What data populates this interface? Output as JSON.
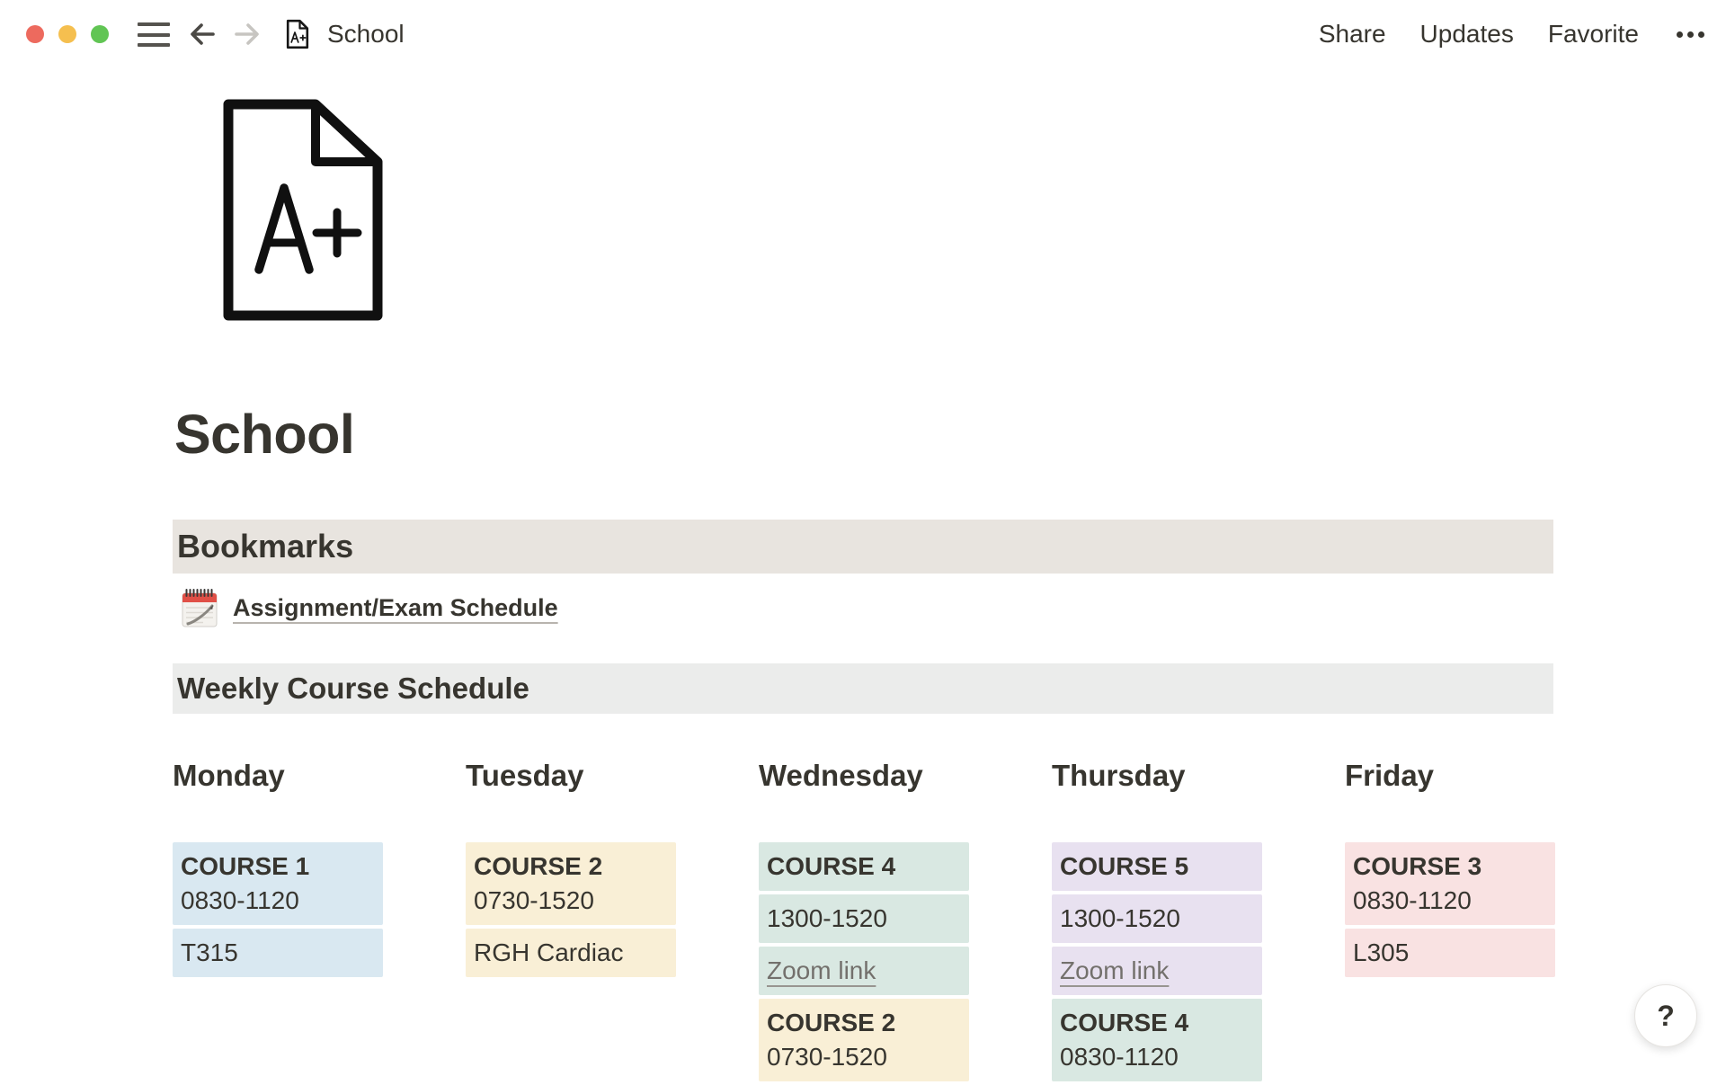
{
  "topbar": {
    "title": "School",
    "share": "Share",
    "updates": "Updates",
    "favorite": "Favorite"
  },
  "page": {
    "icon_text": "A+",
    "title": "School"
  },
  "bookmarks": {
    "header": "Bookmarks",
    "link": "Assignment/Exam Schedule",
    "link_icon": "spiral-notepad-emoji"
  },
  "schedule": {
    "header": "Weekly Course Schedule",
    "days": [
      {
        "name": "Monday",
        "blocks": [
          {
            "color": "blue",
            "lines": [
              {
                "text": "COURSE 1",
                "bold": true
              },
              {
                "text": "0830-1120"
              }
            ]
          },
          {
            "color": "blue",
            "lines": [
              {
                "text": "T315"
              }
            ]
          }
        ]
      },
      {
        "name": "Tuesday",
        "blocks": [
          {
            "color": "yellow",
            "lines": [
              {
                "text": "COURSE 2",
                "bold": true
              },
              {
                "text": "0730-1520"
              }
            ]
          },
          {
            "color": "yellow",
            "lines": [
              {
                "text": "RGH Cardiac"
              }
            ]
          }
        ]
      },
      {
        "name": "Wednesday",
        "blocks": [
          {
            "color": "green",
            "lines": [
              {
                "text": "COURSE 4",
                "bold": true
              }
            ]
          },
          {
            "color": "green",
            "lines": [
              {
                "text": "1300-1520"
              }
            ]
          },
          {
            "color": "green",
            "lines": [
              {
                "text": "Zoom link",
                "link": true
              }
            ]
          },
          {
            "color": "yellow",
            "lines": [
              {
                "text": "COURSE 2",
                "bold": true
              },
              {
                "text": "0730-1520"
              }
            ]
          }
        ]
      },
      {
        "name": "Thursday",
        "blocks": [
          {
            "color": "purple",
            "lines": [
              {
                "text": "COURSE 5",
                "bold": true
              }
            ]
          },
          {
            "color": "purple",
            "lines": [
              {
                "text": "1300-1520"
              }
            ]
          },
          {
            "color": "purple",
            "lines": [
              {
                "text": "Zoom link",
                "link": true
              }
            ]
          },
          {
            "color": "green",
            "lines": [
              {
                "text": "COURSE 4",
                "bold": true
              },
              {
                "text": "0830-1120"
              }
            ]
          }
        ]
      },
      {
        "name": "Friday",
        "blocks": [
          {
            "color": "pink",
            "lines": [
              {
                "text": "COURSE 3",
                "bold": true
              },
              {
                "text": "0830-1120"
              }
            ]
          },
          {
            "color": "pink",
            "lines": [
              {
                "text": "L305"
              }
            ]
          }
        ]
      }
    ]
  },
  "help": {
    "label": "?"
  },
  "icons": {
    "more": "ellipsis-icon",
    "menu": "hamburger-icon",
    "back": "arrow-left-icon",
    "forward": "arrow-right-icon",
    "page_small": "document-a-plus-icon",
    "page_large": "document-a-plus-icon",
    "bookmark": "spiral-notepad-icon"
  },
  "colors": {
    "text": "#37352f",
    "bookmarks_bar": "#e8e4df",
    "weekly_bar": "#ebeceb",
    "blue": "#d9e8f1",
    "yellow": "#f9efd6",
    "green": "#d9e8e2",
    "purple": "#e8e1f0",
    "pink": "#f9e2e2",
    "link_gray": "#73706c",
    "traffic_close": "#ed6a5e",
    "traffic_minimize": "#f5bf4f",
    "traffic_maximize": "#61c554"
  }
}
